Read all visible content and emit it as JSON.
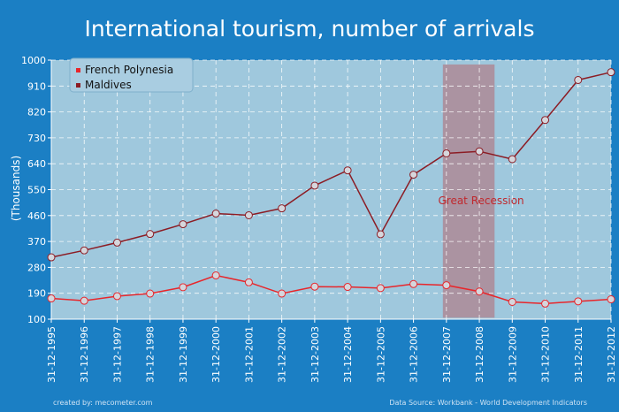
{
  "chart_data": {
    "type": "line",
    "title": "International tourism, number of arrivals",
    "ylabel": "(Thousands)",
    "xlabel": "",
    "ylim": [
      100,
      1000
    ],
    "yticks": [
      100,
      190,
      280,
      370,
      460,
      550,
      640,
      730,
      820,
      910,
      1000
    ],
    "categories": [
      "31-12-1995",
      "31-12-1996",
      "31-12-1997",
      "31-12-1998",
      "31-12-1999",
      "31-12-2000",
      "31-12-2001",
      "31-12-2002",
      "31-12-2003",
      "31-12-2004",
      "31-12-2005",
      "31-12-2006",
      "31-12-2007",
      "31-12-2008",
      "31-12-2009",
      "31-12-2010",
      "31-12-2011",
      "31-12-2012"
    ],
    "series": [
      {
        "name": "French Polynesia",
        "color": "#e8262b",
        "values": [
          172,
          164,
          180,
          189,
          211,
          252,
          228,
          189,
          213,
          212,
          208,
          222,
          218,
          196,
          160,
          154,
          162,
          169
        ]
      },
      {
        "name": "Maldives",
        "color": "#8c1c24",
        "values": [
          315,
          339,
          366,
          396,
          430,
          467,
          461,
          485,
          564,
          617,
          395,
          602,
          676,
          683,
          656,
          792,
          931,
          958
        ]
      }
    ],
    "annotations": [
      {
        "label": "Great Recession",
        "from": "31-12-2007",
        "to": "31-12-2009",
        "color": "#c23030"
      }
    ],
    "grid": true,
    "legend": "top-left",
    "background": "#1b7fc4",
    "plot_background": "#9fc8dd"
  },
  "credits": {
    "left": "created by: mecometer.com",
    "right": "Data Source: Workbank - World Development Indicators"
  }
}
